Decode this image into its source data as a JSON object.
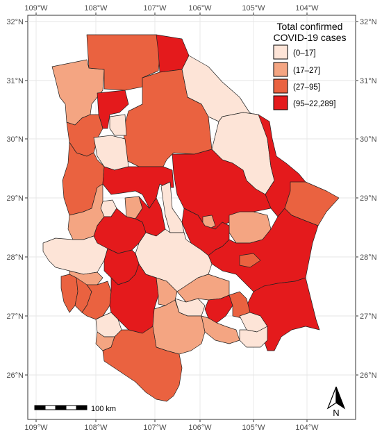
{
  "legend": {
    "title_line1": "Total confirmed",
    "title_line2": "COVID-19 cases",
    "classes": [
      {
        "label": "(0–17]",
        "color": "#fde4d7"
      },
      {
        "label": "(17–27]",
        "color": "#f4a582"
      },
      {
        "label": "(27–95]",
        "color": "#ea6240"
      },
      {
        "label": "(95–22,289]",
        "color": "#e41a1c"
      }
    ]
  },
  "axes": {
    "lon_labels": [
      "109°W",
      "108°W",
      "107°W",
      "106°W",
      "105°W",
      "104°W"
    ],
    "lat_labels": [
      "32°N",
      "31°N",
      "30°N",
      "29°N",
      "28°N",
      "27°N",
      "26°N"
    ]
  },
  "scale_bar": {
    "label": "100 km"
  },
  "north_arrow": {
    "label": "N"
  },
  "colors": {
    "border": "#222222",
    "grid": "#e6e6e6",
    "panel_border": "#333333"
  }
}
